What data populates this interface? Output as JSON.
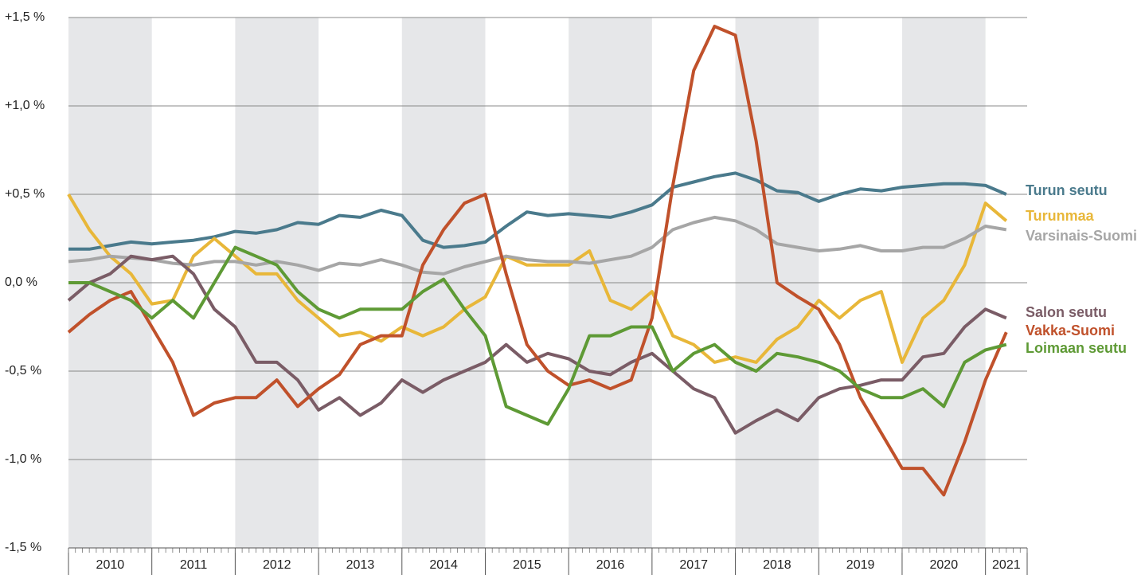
{
  "chart_data": {
    "type": "line",
    "x": [
      2010,
      2010.25,
      2010.5,
      2010.75,
      2011,
      2011.25,
      2011.5,
      2011.75,
      2012,
      2012.25,
      2012.5,
      2012.75,
      2013,
      2013.25,
      2013.5,
      2013.75,
      2014,
      2014.25,
      2014.5,
      2014.75,
      2015,
      2015.25,
      2015.5,
      2015.75,
      2016,
      2016.25,
      2016.5,
      2016.75,
      2017,
      2017.25,
      2017.5,
      2017.75,
      2018,
      2018.25,
      2018.5,
      2018.75,
      2019,
      2019.25,
      2019.5,
      2019.75,
      2020,
      2020.25,
      2020.5,
      2020.75,
      2021,
      2021.25
    ],
    "xlim": [
      2010,
      2021.5
    ],
    "xticks": [
      {
        "value": 2010,
        "label": "2010"
      },
      {
        "value": 2011,
        "label": "2011"
      },
      {
        "value": 2012,
        "label": "2012"
      },
      {
        "value": 2013,
        "label": "2013"
      },
      {
        "value": 2014,
        "label": "2014"
      },
      {
        "value": 2015,
        "label": "2015"
      },
      {
        "value": 2016,
        "label": "2016"
      },
      {
        "value": 2017,
        "label": "2017"
      },
      {
        "value": 2018,
        "label": "2018"
      },
      {
        "value": 2019,
        "label": "2019"
      },
      {
        "value": 2020,
        "label": "2020"
      },
      {
        "value": 2021,
        "label": "2021"
      }
    ],
    "ylim": [
      -1.5,
      1.5
    ],
    "yticks": [
      {
        "value": -1.5,
        "label": "-1,5 %"
      },
      {
        "value": -1.0,
        "label": "-1,0 %"
      },
      {
        "value": -0.5,
        "label": "-0,5 %"
      },
      {
        "value": 0,
        "label": "0,0 %"
      },
      {
        "value": 0.5,
        "label": "+0,5 %"
      },
      {
        "value": 1.0,
        "label": "+1,0 %"
      },
      {
        "value": 1.5,
        "label": "+1,5 %"
      }
    ],
    "grid": true,
    "series": [
      {
        "name": "Turun seutu",
        "color": "#4a7a8c",
        "values": [
          0.19,
          0.19,
          0.21,
          0.23,
          0.22,
          0.23,
          0.24,
          0.26,
          0.29,
          0.28,
          0.3,
          0.34,
          0.33,
          0.38,
          0.37,
          0.41,
          0.38,
          0.24,
          0.2,
          0.21,
          0.23,
          0.32,
          0.4,
          0.38,
          0.39,
          0.38,
          0.37,
          0.4,
          0.44,
          0.54,
          0.57,
          0.6,
          0.62,
          0.58,
          0.52,
          0.51,
          0.46,
          0.5,
          0.53,
          0.52,
          0.54,
          0.55,
          0.56,
          0.56,
          0.55,
          0.5
        ]
      },
      {
        "name": "Turunmaa",
        "color": "#e8b739",
        "values": [
          0.5,
          0.3,
          0.15,
          0.05,
          -0.12,
          -0.1,
          0.15,
          0.25,
          0.15,
          0.05,
          0.05,
          -0.1,
          -0.2,
          -0.3,
          -0.28,
          -0.33,
          -0.25,
          -0.3,
          -0.25,
          -0.15,
          -0.08,
          0.15,
          0.1,
          0.1,
          0.1,
          0.18,
          -0.1,
          -0.15,
          -0.05,
          -0.3,
          -0.35,
          -0.45,
          -0.42,
          -0.45,
          -0.32,
          -0.25,
          -0.1,
          -0.2,
          -0.1,
          -0.05,
          -0.45,
          -0.2,
          -0.1,
          0.1,
          0.45,
          0.35
        ]
      },
      {
        "name": "Varsinais-Suomi",
        "color": "#a6a6a6",
        "values": [
          0.12,
          0.13,
          0.15,
          0.14,
          0.13,
          0.11,
          0.1,
          0.12,
          0.12,
          0.1,
          0.12,
          0.1,
          0.07,
          0.11,
          0.1,
          0.13,
          0.1,
          0.06,
          0.05,
          0.09,
          0.12,
          0.15,
          0.13,
          0.12,
          0.12,
          0.11,
          0.13,
          0.15,
          0.2,
          0.3,
          0.34,
          0.37,
          0.35,
          0.3,
          0.22,
          0.2,
          0.18,
          0.19,
          0.21,
          0.18,
          0.18,
          0.2,
          0.2,
          0.25,
          0.32,
          0.3
        ]
      },
      {
        "name": "Salon seutu",
        "color": "#7a5c66",
        "values": [
          -0.1,
          0.0,
          0.05,
          0.15,
          0.13,
          0.15,
          0.05,
          -0.15,
          -0.25,
          -0.45,
          -0.45,
          -0.55,
          -0.72,
          -0.65,
          -0.75,
          -0.68,
          -0.55,
          -0.62,
          -0.55,
          -0.5,
          -0.45,
          -0.35,
          -0.45,
          -0.4,
          -0.43,
          -0.5,
          -0.52,
          -0.45,
          -0.4,
          -0.5,
          -0.6,
          -0.65,
          -0.85,
          -0.78,
          -0.72,
          -0.78,
          -0.65,
          -0.6,
          -0.58,
          -0.55,
          -0.55,
          -0.42,
          -0.4,
          -0.25,
          -0.15,
          -0.2
        ]
      },
      {
        "name": "Vakka-Suomi",
        "color": "#c0512b",
        "values": [
          -0.28,
          -0.18,
          -0.1,
          -0.05,
          -0.25,
          -0.45,
          -0.75,
          -0.68,
          -0.65,
          -0.65,
          -0.55,
          -0.7,
          -0.6,
          -0.52,
          -0.35,
          -0.3,
          -0.3,
          0.1,
          0.3,
          0.45,
          0.5,
          0.05,
          -0.35,
          -0.5,
          -0.58,
          -0.55,
          -0.6,
          -0.55,
          -0.2,
          0.55,
          1.2,
          1.45,
          1.4,
          0.8,
          0.0,
          -0.08,
          -0.15,
          -0.35,
          -0.65,
          -0.85,
          -1.05,
          -1.05,
          -1.2,
          -0.9,
          -0.55,
          -0.28
        ]
      },
      {
        "name": "Loimaan seutu",
        "color": "#5e9a35",
        "values": [
          0.0,
          0.0,
          -0.05,
          -0.1,
          -0.2,
          -0.1,
          -0.2,
          0.0,
          0.2,
          0.15,
          0.1,
          -0.05,
          -0.15,
          -0.2,
          -0.15,
          -0.15,
          -0.15,
          -0.05,
          0.02,
          -0.15,
          -0.3,
          -0.7,
          -0.75,
          -0.8,
          -0.6,
          -0.3,
          -0.3,
          -0.25,
          -0.25,
          -0.5,
          -0.4,
          -0.35,
          -0.45,
          -0.5,
          -0.4,
          -0.42,
          -0.45,
          -0.5,
          -0.6,
          -0.65,
          -0.65,
          -0.6,
          -0.7,
          -0.45,
          -0.38,
          -0.35
        ]
      }
    ]
  }
}
